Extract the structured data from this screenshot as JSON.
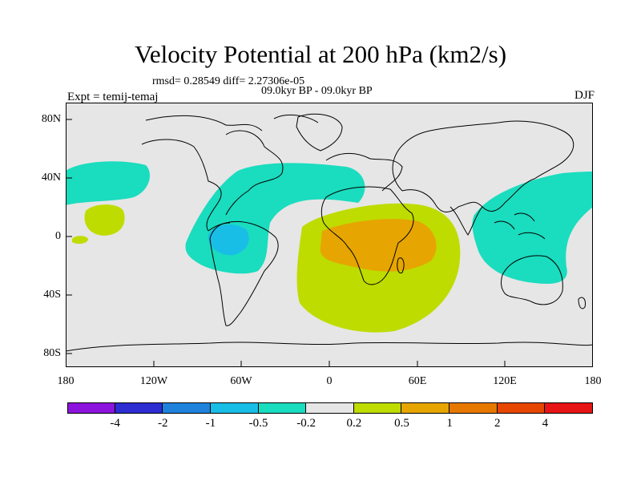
{
  "title": "Velocity Potential at 200 hPa (km2/s)",
  "stats": "rmsd= 0.28549 diff= 2.27306e-05",
  "period": "09.0kyr BP - 09.0kyr BP",
  "expt": "Expt = temij-temaj",
  "season": "DJF",
  "map": {
    "latitude_labels": [
      "80N",
      "40N",
      "0",
      "40S",
      "80S"
    ],
    "longitude_labels": [
      "180",
      "120W",
      "60W",
      "0",
      "60E",
      "120E",
      "180"
    ],
    "background_color": "#e6e6e6"
  },
  "colorbar": {
    "colors": [
      "#8c14dc",
      "#2d2dd2",
      "#1e82dc",
      "#19bee6",
      "#1adcbe",
      "#e6e6e6",
      "#bedc00",
      "#e6a500",
      "#e67800",
      "#e64600",
      "#e61414"
    ],
    "labels": [
      "-4",
      "-2",
      "-1",
      "-0.5",
      "-0.2",
      "0.2",
      "0.5",
      "1",
      "2",
      "4"
    ]
  }
}
